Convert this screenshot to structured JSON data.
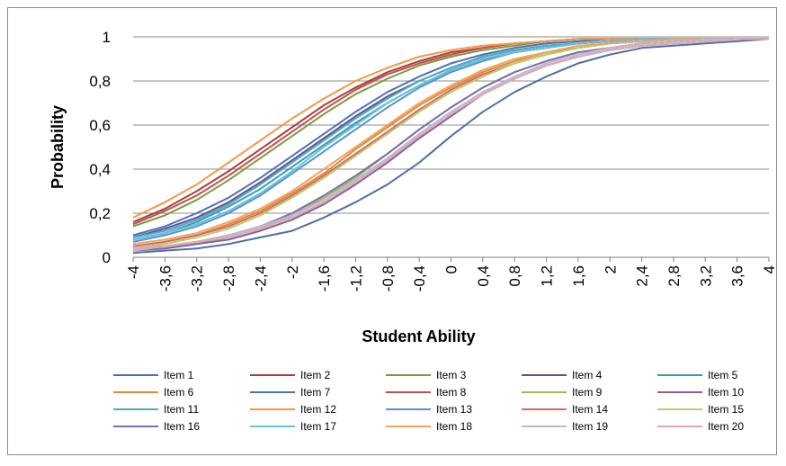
{
  "chart_data": {
    "type": "line",
    "xlabel": "Student Ability",
    "ylabel": "Probability",
    "xlim": [
      -4,
      4
    ],
    "ylim": [
      0,
      1
    ],
    "x_ticks": [
      "-4",
      "-3,6",
      "-3,2",
      "-2,8",
      "-2,4",
      "-2",
      "-1,6",
      "-1,2",
      "-0,8",
      "-0,4",
      "0",
      "0,4",
      "0,8",
      "1,2",
      "1,6",
      "2",
      "2,4",
      "2,8",
      "3,2",
      "3,6",
      "4"
    ],
    "y_ticks": [
      "0",
      "0,2",
      "0,4",
      "0,6",
      "0,8",
      "1"
    ],
    "grid": "horizontal",
    "legend_position": "bottom",
    "x": [
      -4,
      -3.6,
      -3.2,
      -2.8,
      -2.4,
      -2,
      -1.6,
      -1.2,
      -0.8,
      -0.4,
      0,
      0.4,
      0.8,
      1.2,
      1.6,
      2,
      2.4,
      2.8,
      3.2,
      3.6,
      4
    ],
    "series": [
      {
        "name": "Item 1",
        "color": "#4f6fa8",
        "values": [
          0.02,
          0.03,
          0.04,
          0.06,
          0.09,
          0.12,
          0.18,
          0.25,
          0.33,
          0.43,
          0.55,
          0.66,
          0.75,
          0.82,
          0.88,
          0.92,
          0.95,
          0.96,
          0.97,
          0.98,
          0.99
        ]
      },
      {
        "name": "Item 2",
        "color": "#a9403c",
        "values": [
          0.16,
          0.22,
          0.3,
          0.39,
          0.49,
          0.59,
          0.69,
          0.77,
          0.84,
          0.89,
          0.93,
          0.95,
          0.97,
          0.98,
          0.99,
          0.99,
          0.99,
          0.99,
          0.99,
          0.99,
          0.99
        ]
      },
      {
        "name": "Item 3",
        "color": "#7c9a3d",
        "values": [
          0.14,
          0.19,
          0.26,
          0.35,
          0.45,
          0.55,
          0.65,
          0.74,
          0.81,
          0.87,
          0.91,
          0.94,
          0.96,
          0.98,
          0.99,
          0.99,
          0.99,
          0.99,
          0.99,
          0.99,
          0.99
        ]
      },
      {
        "name": "Item 4",
        "color": "#6a4c8c",
        "values": [
          0.09,
          0.13,
          0.18,
          0.25,
          0.34,
          0.44,
          0.54,
          0.64,
          0.73,
          0.8,
          0.86,
          0.91,
          0.94,
          0.96,
          0.97,
          0.98,
          0.99,
          0.99,
          0.99,
          0.99,
          0.99
        ]
      },
      {
        "name": "Item 5",
        "color": "#3f98ad",
        "values": [
          0.08,
          0.11,
          0.16,
          0.23,
          0.31,
          0.41,
          0.51,
          0.61,
          0.7,
          0.78,
          0.85,
          0.9,
          0.93,
          0.95,
          0.97,
          0.98,
          0.99,
          0.99,
          0.99,
          0.99,
          0.99
        ]
      },
      {
        "name": "Item 6",
        "color": "#e08a3c",
        "values": [
          0.05,
          0.07,
          0.1,
          0.15,
          0.21,
          0.29,
          0.38,
          0.49,
          0.59,
          0.69,
          0.77,
          0.84,
          0.89,
          0.93,
          0.95,
          0.97,
          0.98,
          0.99,
          0.99,
          0.99,
          0.99
        ]
      },
      {
        "name": "Item 7",
        "color": "#4a73b8",
        "values": [
          0.1,
          0.14,
          0.2,
          0.27,
          0.36,
          0.46,
          0.56,
          0.66,
          0.75,
          0.82,
          0.88,
          0.92,
          0.95,
          0.97,
          0.98,
          0.99,
          0.99,
          0.99,
          0.99,
          0.99,
          0.99
        ]
      },
      {
        "name": "Item 8",
        "color": "#c0504d",
        "values": [
          0.15,
          0.21,
          0.28,
          0.37,
          0.47,
          0.57,
          0.67,
          0.76,
          0.83,
          0.88,
          0.92,
          0.95,
          0.97,
          0.98,
          0.99,
          0.99,
          0.99,
          0.99,
          0.99,
          0.99,
          0.99
        ]
      },
      {
        "name": "Item 9",
        "color": "#9bbb59",
        "values": [
          0.03,
          0.04,
          0.06,
          0.09,
          0.13,
          0.19,
          0.27,
          0.36,
          0.47,
          0.58,
          0.68,
          0.77,
          0.84,
          0.89,
          0.93,
          0.95,
          0.97,
          0.98,
          0.99,
          0.99,
          0.99
        ]
      },
      {
        "name": "Item 10",
        "color": "#8064a2",
        "values": [
          0.03,
          0.04,
          0.06,
          0.08,
          0.12,
          0.17,
          0.24,
          0.33,
          0.43,
          0.54,
          0.64,
          0.74,
          0.81,
          0.87,
          0.91,
          0.94,
          0.96,
          0.97,
          0.98,
          0.99,
          0.99
        ]
      },
      {
        "name": "Item 11",
        "color": "#4bacc6",
        "values": [
          0.09,
          0.12,
          0.17,
          0.24,
          0.33,
          0.43,
          0.53,
          0.63,
          0.72,
          0.8,
          0.86,
          0.91,
          0.94,
          0.96,
          0.97,
          0.98,
          0.99,
          0.99,
          0.99,
          0.99,
          0.99
        ]
      },
      {
        "name": "Item 12",
        "color": "#f79646",
        "values": [
          0.18,
          0.25,
          0.33,
          0.43,
          0.53,
          0.63,
          0.72,
          0.8,
          0.86,
          0.91,
          0.94,
          0.96,
          0.97,
          0.98,
          0.99,
          0.99,
          0.99,
          0.99,
          0.99,
          0.99,
          0.99
        ]
      },
      {
        "name": "Item 13",
        "color": "#5b8fd6",
        "values": [
          0.07,
          0.1,
          0.14,
          0.2,
          0.28,
          0.38,
          0.48,
          0.58,
          0.68,
          0.77,
          0.84,
          0.89,
          0.93,
          0.95,
          0.97,
          0.98,
          0.99,
          0.99,
          0.99,
          0.99,
          0.99
        ]
      },
      {
        "name": "Item 14",
        "color": "#d46a6a",
        "values": [
          0.05,
          0.07,
          0.1,
          0.14,
          0.2,
          0.28,
          0.37,
          0.47,
          0.57,
          0.67,
          0.76,
          0.83,
          0.88,
          0.92,
          0.95,
          0.97,
          0.98,
          0.99,
          0.99,
          0.99,
          0.99
        ]
      },
      {
        "name": "Item 15",
        "color": "#b5cf6b",
        "values": [
          0.04,
          0.06,
          0.09,
          0.13,
          0.19,
          0.27,
          0.36,
          0.46,
          0.56,
          0.66,
          0.75,
          0.82,
          0.88,
          0.92,
          0.95,
          0.97,
          0.98,
          0.99,
          0.99,
          0.99,
          0.99
        ]
      },
      {
        "name": "Item 16",
        "color": "#7f6fa8",
        "values": [
          0.04,
          0.05,
          0.07,
          0.1,
          0.14,
          0.2,
          0.28,
          0.37,
          0.47,
          0.58,
          0.68,
          0.77,
          0.84,
          0.89,
          0.93,
          0.95,
          0.97,
          0.98,
          0.99,
          0.99,
          0.99
        ]
      },
      {
        "name": "Item 17",
        "color": "#66c2d6",
        "values": [
          0.08,
          0.11,
          0.15,
          0.21,
          0.29,
          0.39,
          0.5,
          0.6,
          0.7,
          0.78,
          0.85,
          0.9,
          0.93,
          0.95,
          0.97,
          0.98,
          0.99,
          0.99,
          0.99,
          0.99,
          0.99
        ]
      },
      {
        "name": "Item 18",
        "color": "#f4a45c",
        "values": [
          0.06,
          0.08,
          0.11,
          0.16,
          0.22,
          0.3,
          0.4,
          0.5,
          0.6,
          0.7,
          0.78,
          0.85,
          0.9,
          0.93,
          0.96,
          0.97,
          0.98,
          0.99,
          0.99,
          0.99,
          0.99
        ]
      },
      {
        "name": "Item 19",
        "color": "#b8b8d8",
        "values": [
          0.04,
          0.05,
          0.07,
          0.1,
          0.14,
          0.19,
          0.26,
          0.35,
          0.45,
          0.56,
          0.66,
          0.75,
          0.82,
          0.88,
          0.92,
          0.95,
          0.97,
          0.98,
          0.99,
          0.99,
          0.99
        ]
      },
      {
        "name": "Item 20",
        "color": "#e4a8a8",
        "values": [
          0.03,
          0.05,
          0.07,
          0.09,
          0.13,
          0.18,
          0.25,
          0.34,
          0.44,
          0.55,
          0.65,
          0.74,
          0.81,
          0.87,
          0.91,
          0.94,
          0.96,
          0.97,
          0.98,
          0.99,
          0.99
        ]
      }
    ]
  }
}
